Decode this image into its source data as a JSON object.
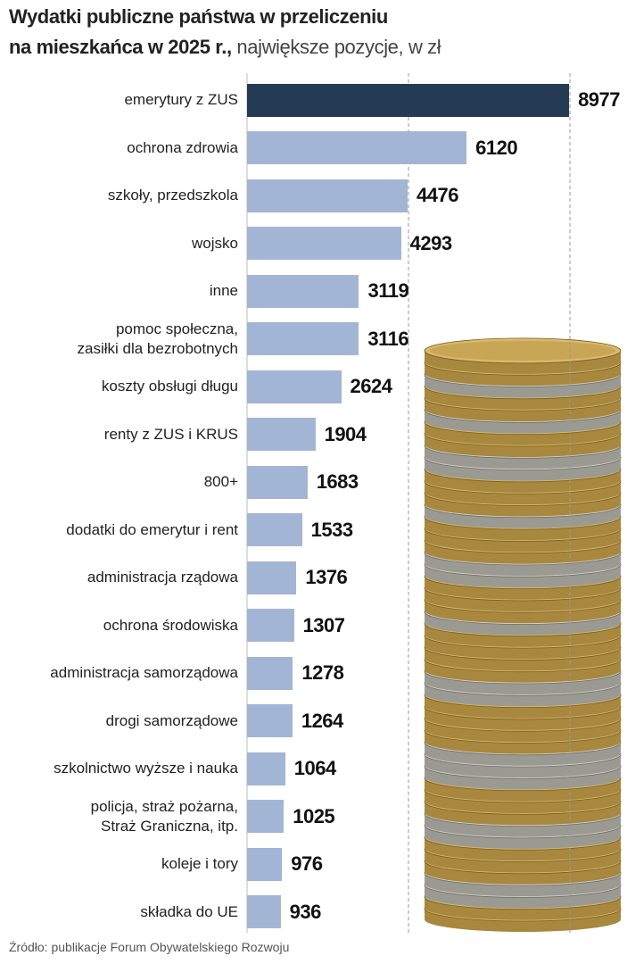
{
  "chart_data": {
    "type": "bar",
    "orientation": "horizontal",
    "title": [
      "Wydatki publiczne państwa w przeliczeniu",
      "na mieszkańca w 2025 r.,"
    ],
    "subtitle": "największe pozycje, w zł",
    "categories": [
      "emerytury z ZUS",
      "ochrona zdrowia",
      "szkoły, przedszkola",
      "wojsko",
      "inne",
      "pomoc społeczna,\nzasiłki dla bezrobotnych",
      "koszty obsługi długu",
      "renty z ZUS i KRUS",
      "800+",
      "dodatki do emerytur i rent",
      "administracja rządowa",
      "ochrona środowiska",
      "administracja samorządowa",
      "drogi samorządowe",
      "szkolnictwo wyższe i nauka",
      "policja, straż pożarna,\nStraż Graniczna, itp.",
      "koleje i tory",
      "składka do UE"
    ],
    "values": [
      8977,
      6120,
      4476,
      4293,
      3119,
      3116,
      2624,
      1904,
      1683,
      1533,
      1376,
      1307,
      1278,
      1264,
      1064,
      1025,
      976,
      936
    ],
    "colors": [
      "#243b53",
      "#a3b5d4",
      "#a3b5d4",
      "#a3b5d4",
      "#a3b5d4",
      "#a3b5d4",
      "#a3b5d4",
      "#a3b5d4",
      "#a3b5d4",
      "#a3b5d4",
      "#a3b5d4",
      "#a3b5d4",
      "#a3b5d4",
      "#a3b5d4",
      "#a3b5d4",
      "#a3b5d4",
      "#a3b5d4",
      "#a3b5d4"
    ],
    "xlim": [
      0,
      9000
    ],
    "grid_lines": [
      4500,
      9000
    ],
    "source": "Źródło: publikacje Forum Obywatelskiego Rozwoju"
  }
}
